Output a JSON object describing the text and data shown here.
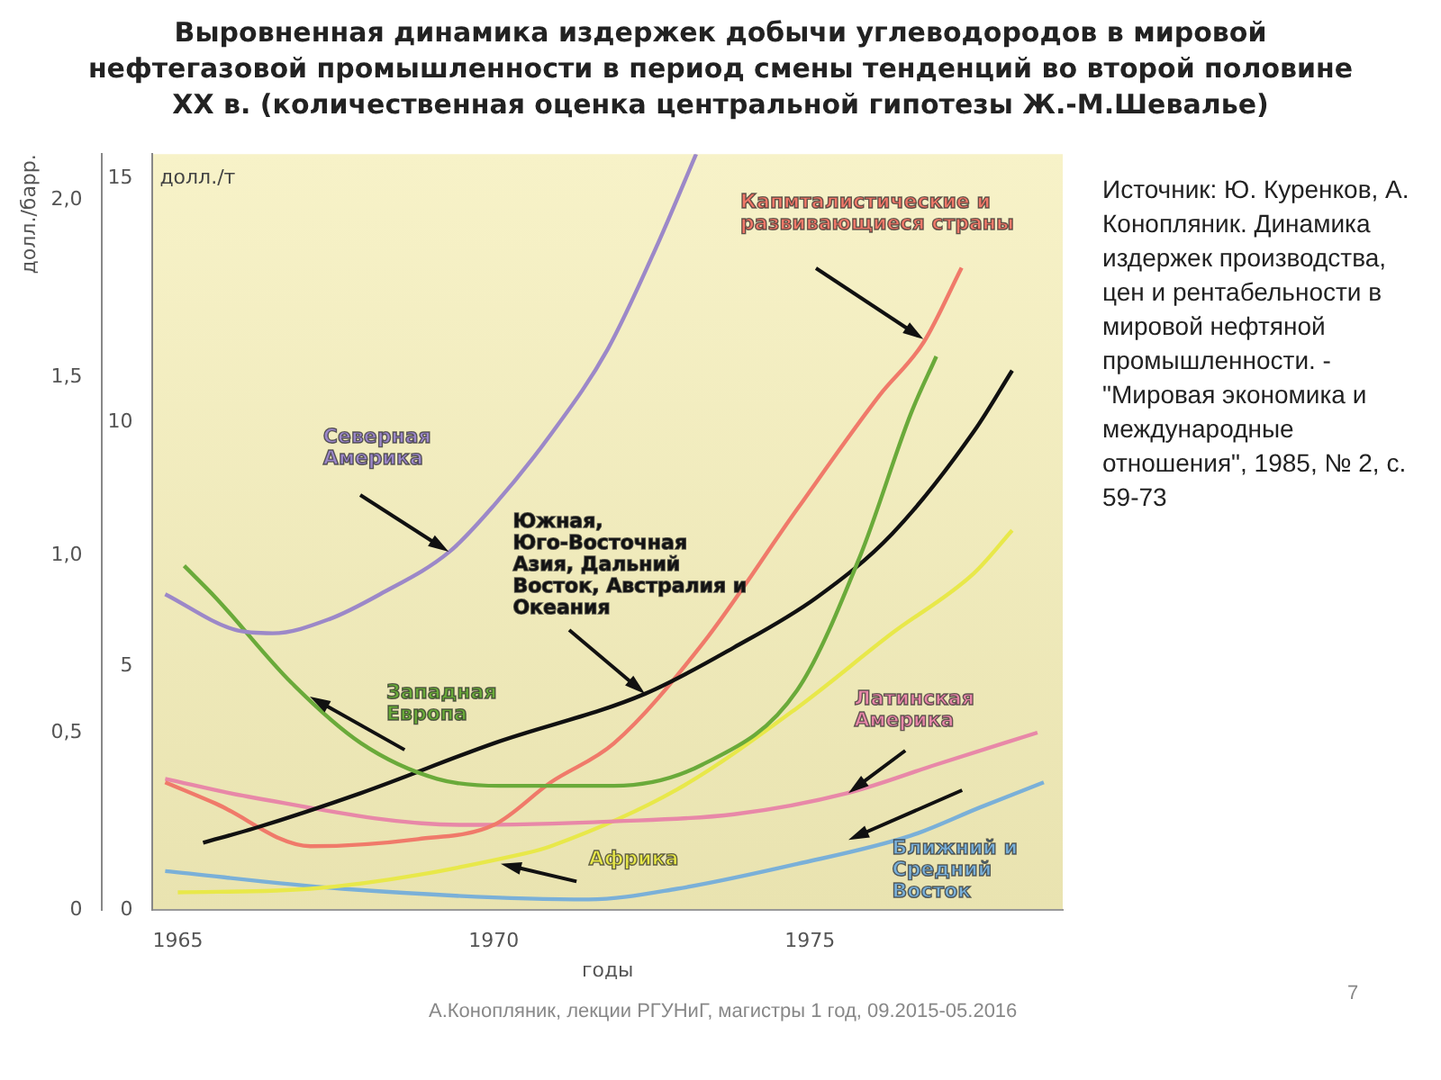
{
  "chart_data": {
    "type": "line",
    "title": "Выровненная динамика издержек добычи углеводородов в мировой нефтегазовой промышленности в период смены тенденций во второй половине XX в. (количественная оценка центральной гипотезы Ж.-М.Шевалье)",
    "xlabel": "годы",
    "ylabel": "долл./барр.",
    "y2label": "долл./т",
    "xlim": [
      1964.6,
      1979
    ],
    "xticks": [
      1965,
      1970,
      1975
    ],
    "ylim": [
      0,
      2.13
    ],
    "yticks": [
      {
        "value": 0,
        "label": "0"
      },
      {
        "value": 0.5,
        "label": "0,5"
      },
      {
        "value": 1,
        "label": "1,0"
      },
      {
        "value": 1.5,
        "label": "1,5"
      },
      {
        "value": 2,
        "label": "2,0"
      }
    ],
    "y2lim": [
      0,
      15.5
    ],
    "y2ticks": [
      0,
      5,
      10,
      15
    ],
    "grid": false,
    "legend": false,
    "marker": "none",
    "line_style": "solid",
    "series": [
      {
        "name": "Северная Америка",
        "color": "#9c88c8",
        "x": [
          1964.8,
          1965.9,
          1966.5,
          1967.4,
          1968.2,
          1969.3,
          1970.0,
          1970.9,
          1971.8,
          1972.6,
          1973.2
        ],
        "values": [
          0.89,
          0.79,
          0.78,
          0.82,
          0.89,
          1.01,
          1.14,
          1.34,
          1.58,
          1.88,
          2.13
        ]
      },
      {
        "name": "Западная Европа",
        "color": "#6aaa3a",
        "x": [
          1965.1,
          1965.6,
          1966.8,
          1967.9,
          1969.1,
          1970.1,
          1971.9,
          1973.3,
          1974.8,
          1975.8,
          1976.6,
          1977.0
        ],
        "values": [
          0.97,
          0.88,
          0.64,
          0.47,
          0.37,
          0.35,
          0.35,
          0.41,
          0.62,
          1.0,
          1.4,
          1.56
        ]
      },
      {
        "name": "Южная, Юго-Восточная Азия, Дальний Восток, Австралия и Океания",
        "color": "#111111",
        "x": [
          1965.4,
          1966.2,
          1967.9,
          1970.0,
          1972.4,
          1973.8,
          1975.1,
          1976.3,
          1977.6,
          1978.2
        ],
        "values": [
          0.19,
          0.23,
          0.33,
          0.47,
          0.61,
          0.74,
          0.88,
          1.06,
          1.35,
          1.52
        ]
      },
      {
        "name": "Капмталистические и развивающиеся страны",
        "color": "#f07a6a",
        "x": [
          1964.8,
          1965.6,
          1967.1,
          1968.8,
          1970.0,
          1970.9,
          1971.9,
          1973.3,
          1974.8,
          1976.1,
          1976.8,
          1977.4
        ],
        "values": [
          0.36,
          0.3,
          0.18,
          0.2,
          0.24,
          0.36,
          0.47,
          0.75,
          1.13,
          1.45,
          1.6,
          1.81
        ]
      },
      {
        "name": "Латинская Америка",
        "color": "#e888a8",
        "x": [
          1964.8,
          1966.1,
          1969.5,
          1971.9,
          1973.8,
          1975.6,
          1977.0,
          1978.6
        ],
        "values": [
          0.37,
          0.32,
          0.24,
          0.25,
          0.27,
          0.33,
          0.41,
          0.5
        ]
      },
      {
        "name": "Африка",
        "color": "#e8e84a",
        "x": [
          1965.0,
          1967.1,
          1970.5,
          1970.9,
          1972.9,
          1974.8,
          1976.3,
          1977.6,
          1978.2
        ],
        "values": [
          0.05,
          0.06,
          0.16,
          0.18,
          0.34,
          0.57,
          0.78,
          0.95,
          1.07
        ]
      },
      {
        "name": "Ближний и Средний Восток",
        "color": "#7ab0d8",
        "x": [
          1964.8,
          1967.6,
          1971.5,
          1972.9,
          1974.8,
          1976.6,
          1977.7,
          1978.7
        ],
        "values": [
          0.11,
          0.06,
          0.03,
          0.06,
          0.13,
          0.21,
          0.29,
          0.36
        ]
      }
    ],
    "annotations": [
      "Источник: Ю. Куренков, А. Конопляник. Динамика издержек производства, цен и рентабельности в мировой нефтяной промышленности. - \"Мировая экономика и международные отношения\", 1985, № 2, с. 59-73",
      "А.Конопляник, лекции РГУНиГ, магистры 1 год, 09.2015-05.2016",
      "7"
    ]
  }
}
